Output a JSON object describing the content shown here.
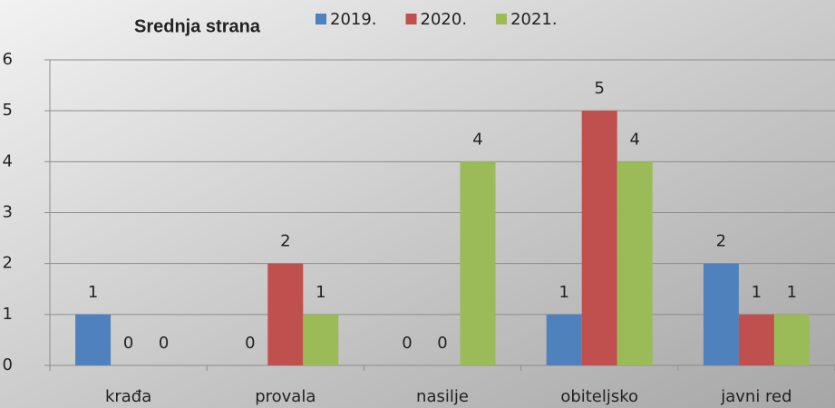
{
  "chart_data": {
    "type": "bar",
    "title": "Srednja strana",
    "categories": [
      "krađa",
      "provala",
      "nasilje",
      "obiteljsko",
      "javni red"
    ],
    "series": [
      {
        "name": "2019.",
        "color": "#4f81bd",
        "values": [
          1,
          0,
          0,
          1,
          2
        ]
      },
      {
        "name": "2020.",
        "color": "#c0504d",
        "values": [
          0,
          2,
          0,
          5,
          1
        ]
      },
      {
        "name": "2021.",
        "color": "#9bbb59",
        "values": [
          0,
          1,
          4,
          4,
          1
        ]
      }
    ],
    "ylim": [
      0,
      6
    ],
    "yticks": [
      0,
      1,
      2,
      3,
      4,
      5,
      6
    ],
    "grid": true
  }
}
